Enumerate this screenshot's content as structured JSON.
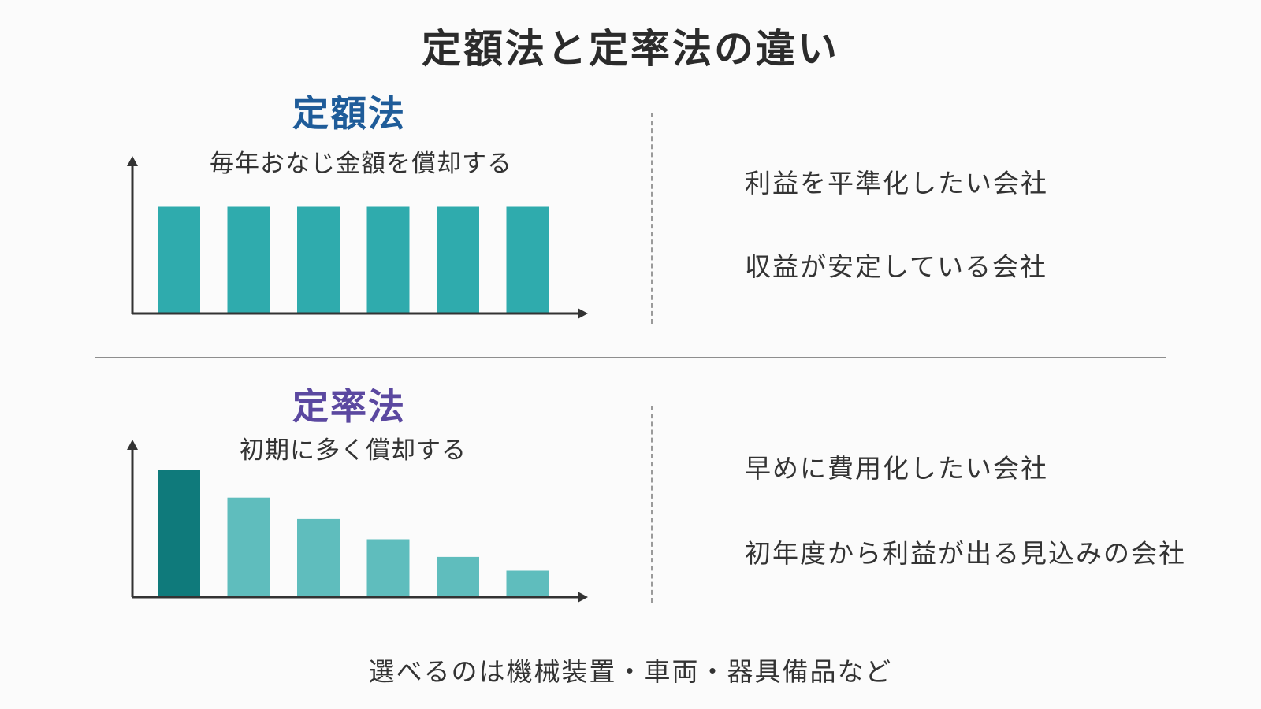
{
  "title": "定額法と定率法の違い",
  "footer": "選べるのは機械装置・車両・器具備品など",
  "colors": {
    "teal": "#2fabad",
    "teal_dark": "#0f7a7b",
    "teal_light": "#5fbdbd",
    "blue_title": "#1f5c99",
    "purple_title": "#5b48a0",
    "axis": "#333333"
  },
  "sections": {
    "straight_line": {
      "title": "定額法",
      "description": "毎年おなじ金額を償却する",
      "points": [
        "利益を平準化したい会社",
        "収益が安定している会社"
      ]
    },
    "declining_balance": {
      "title": "定率法",
      "description": "初期に多く償却する",
      "points": [
        "早めに費用化したい会社",
        "初年度から利益が出る見込みの会社"
      ]
    }
  },
  "chart_data": [
    {
      "type": "bar",
      "values": [
        100,
        100,
        100,
        100,
        100,
        100
      ],
      "ylim": [
        0,
        100
      ],
      "xlabel": "",
      "ylabel": "",
      "grid": false
    },
    {
      "type": "bar",
      "values": [
        100,
        78,
        61,
        45,
        31,
        20
      ],
      "ylim": [
        0,
        100
      ],
      "xlabel": "",
      "ylabel": "",
      "grid": false
    }
  ]
}
